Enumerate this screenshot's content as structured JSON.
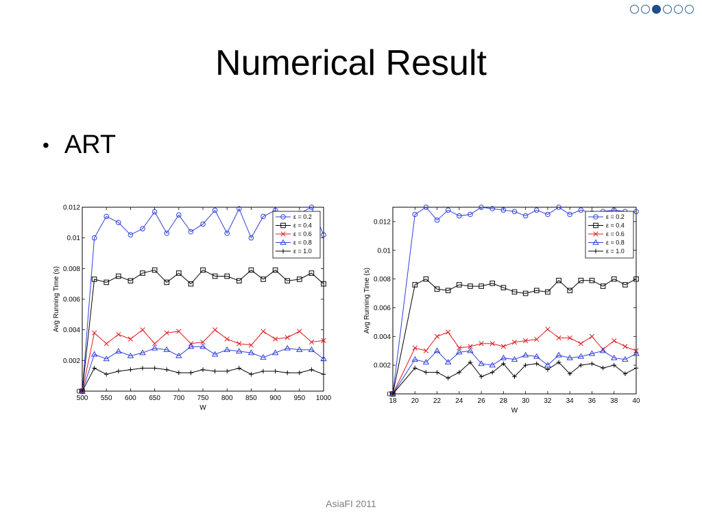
{
  "slide": {
    "title": "Numerical Result",
    "bullet": "ART",
    "footer": "AsiaFI 2011",
    "nav_dots": [
      false,
      false,
      true,
      false,
      false,
      false
    ]
  },
  "legend_labels": [
    "ε = 0.2",
    "ε = 0.4",
    "ε = 0.6",
    "ε = 0.8",
    "ε = 1.0"
  ],
  "chart_data": [
    {
      "type": "line",
      "xlabel": "W",
      "xlabel_sub": "1",
      "ylabel": "Avg Running Time (s)",
      "xlim": [
        500,
        1000
      ],
      "ylim": [
        0,
        0.012
      ],
      "xticks": [
        500,
        550,
        600,
        650,
        700,
        750,
        800,
        850,
        900,
        950,
        1000
      ],
      "yticks": [
        0,
        0.002,
        0.004,
        0.006,
        0.008,
        0.01,
        0.012
      ],
      "ytick_labels": [
        "0",
        "0.002",
        "0.004",
        "0.006",
        "0.008",
        "0.01",
        "0.012"
      ],
      "legend": "top-right",
      "x": [
        500,
        525,
        550,
        575,
        600,
        625,
        650,
        675,
        700,
        725,
        750,
        775,
        800,
        825,
        850,
        875,
        900,
        925,
        950,
        975,
        1000
      ],
      "series": [
        {
          "name": "ε = 0.2",
          "color": "#2d3fd6",
          "marker": "circle",
          "values": [
            0,
            0.01,
            0.0114,
            0.011,
            0.0102,
            0.0106,
            0.0117,
            0.0103,
            0.0115,
            0.0104,
            0.0109,
            0.0118,
            0.0103,
            0.0119,
            0.01,
            0.0114,
            0.0118,
            0.011,
            0.0116,
            0.012,
            0.0102
          ]
        },
        {
          "name": "ε = 0.4",
          "color": "#000000",
          "marker": "square",
          "values": [
            0,
            0.0073,
            0.0071,
            0.0075,
            0.0072,
            0.0077,
            0.0079,
            0.0071,
            0.0077,
            0.007,
            0.0079,
            0.0075,
            0.0075,
            0.0072,
            0.0079,
            0.0073,
            0.0079,
            0.0072,
            0.0073,
            0.0077,
            0.007
          ]
        },
        {
          "name": "ε = 0.6",
          "color": "#e0181b",
          "marker": "x",
          "values": [
            0,
            0.0038,
            0.0031,
            0.0037,
            0.0034,
            0.004,
            0.0031,
            0.0038,
            0.0039,
            0.0031,
            0.0032,
            0.004,
            0.0034,
            0.0031,
            0.003,
            0.0039,
            0.0034,
            0.0035,
            0.0039,
            0.0032,
            0.0033
          ]
        },
        {
          "name": "ε = 0.8",
          "color": "#2d3fd6",
          "marker": "triangle",
          "values": [
            0,
            0.0024,
            0.0021,
            0.0026,
            0.0023,
            0.0025,
            0.0028,
            0.0027,
            0.0023,
            0.0029,
            0.0029,
            0.0024,
            0.0027,
            0.0026,
            0.0025,
            0.0022,
            0.0025,
            0.0028,
            0.0027,
            0.0027,
            0.0021
          ]
        },
        {
          "name": "ε = 1.0",
          "color": "#000000",
          "marker": "plus",
          "values": [
            0,
            0.0015,
            0.0011,
            0.0013,
            0.0014,
            0.0015,
            0.0015,
            0.0014,
            0.0012,
            0.0012,
            0.0014,
            0.0013,
            0.0013,
            0.0015,
            0.0011,
            0.0013,
            0.0013,
            0.0012,
            0.0012,
            0.0014,
            0.0011
          ]
        }
      ]
    },
    {
      "type": "line",
      "xlabel": "W",
      "xlabel_sub": "2",
      "ylabel": "Avg Running Time (s)",
      "xlim": [
        18,
        40
      ],
      "ylim": [
        0,
        0.013
      ],
      "xticks": [
        18,
        20,
        22,
        24,
        26,
        28,
        30,
        32,
        34,
        36,
        38,
        40
      ],
      "yticks": [
        0,
        0.002,
        0.004,
        0.006,
        0.008,
        0.01,
        0.012
      ],
      "ytick_labels": [
        "0",
        "0.002",
        "0.004",
        "0.006",
        "0.008",
        "0.01",
        "0.012"
      ],
      "legend": "top-right",
      "x": [
        18,
        20,
        21,
        22,
        23,
        24,
        25,
        26,
        27,
        28,
        29,
        30,
        31,
        32,
        33,
        34,
        35,
        36,
        37,
        38,
        39,
        40
      ],
      "series": [
        {
          "name": "ε = 0.2",
          "color": "#2d3fd6",
          "marker": "circle",
          "values": [
            0,
            0.0125,
            0.013,
            0.0121,
            0.0128,
            0.0124,
            0.0125,
            0.013,
            0.0129,
            0.0128,
            0.0127,
            0.0124,
            0.0128,
            0.0125,
            0.013,
            0.0125,
            0.0128,
            0.0126,
            0.0127,
            0.0128,
            0.0127,
            0.0127
          ]
        },
        {
          "name": "ε = 0.4",
          "color": "#000000",
          "marker": "square",
          "values": [
            0,
            0.0076,
            0.008,
            0.0073,
            0.0072,
            0.0076,
            0.0075,
            0.0075,
            0.0077,
            0.0074,
            0.0071,
            0.007,
            0.0072,
            0.0071,
            0.0079,
            0.0072,
            0.0079,
            0.0079,
            0.0075,
            0.008,
            0.0076,
            0.008
          ]
        },
        {
          "name": "ε = 0.6",
          "color": "#e0181b",
          "marker": "x",
          "values": [
            0,
            0.0032,
            0.003,
            0.004,
            0.0043,
            0.0032,
            0.0033,
            0.0035,
            0.0035,
            0.0033,
            0.0036,
            0.0037,
            0.0038,
            0.0045,
            0.0039,
            0.0039,
            0.0035,
            0.004,
            0.0031,
            0.0037,
            0.0033,
            0.003
          ]
        },
        {
          "name": "ε = 0.8",
          "color": "#2d3fd6",
          "marker": "triangle",
          "values": [
            0,
            0.0024,
            0.0022,
            0.003,
            0.0022,
            0.0029,
            0.003,
            0.0021,
            0.002,
            0.0025,
            0.0024,
            0.0027,
            0.0026,
            0.002,
            0.0027,
            0.0025,
            0.0026,
            0.0028,
            0.003,
            0.0025,
            0.0024,
            0.0028
          ]
        },
        {
          "name": "ε = 1.0",
          "color": "#000000",
          "marker": "plus",
          "values": [
            0,
            0.0018,
            0.0015,
            0.0015,
            0.0011,
            0.0015,
            0.0022,
            0.0012,
            0.0015,
            0.0021,
            0.0012,
            0.002,
            0.0021,
            0.0017,
            0.0022,
            0.0014,
            0.002,
            0.0021,
            0.0018,
            0.002,
            0.0014,
            0.0018
          ]
        }
      ]
    }
  ]
}
